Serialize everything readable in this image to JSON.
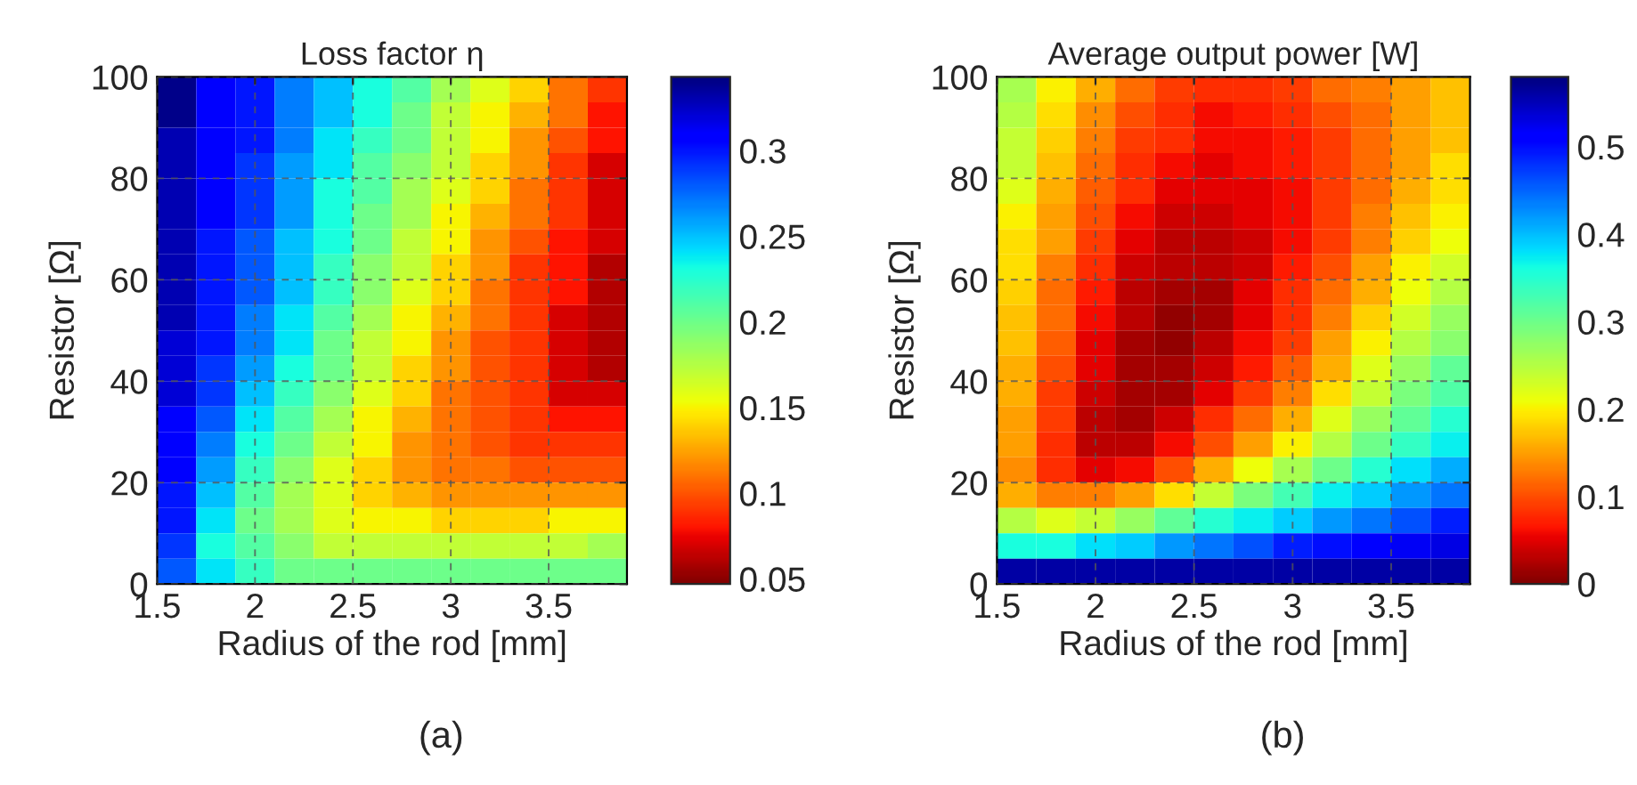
{
  "chart_data": [
    {
      "type": "heatmap",
      "title": "Loss factor η",
      "xlabel": "Radius of the rod [mm]",
      "ylabel": "Resistor [Ω]",
      "annotations": [
        "(a)"
      ],
      "x": [
        1.6,
        1.8,
        2.0,
        2.2,
        2.4,
        2.6,
        2.8,
        3.0,
        3.2,
        3.4,
        3.6,
        3.8
      ],
      "y": [
        97.5,
        92.5,
        87.5,
        82.5,
        77.5,
        72.5,
        67.5,
        62.5,
        57.5,
        52.5,
        47.5,
        42.5,
        37.5,
        32.5,
        27.5,
        22.5,
        17.5,
        12.5,
        7.5,
        2.5
      ],
      "xlim": [
        1.5,
        3.9
      ],
      "xticks": [
        1.5,
        2,
        2.5,
        3,
        3.5
      ],
      "ylim": [
        0,
        100
      ],
      "yticks": [
        0,
        20,
        40,
        60,
        80,
        100
      ],
      "grid": true,
      "clim": [
        0.047,
        0.343
      ],
      "cticks": [
        0.05,
        0.1,
        0.15,
        0.2,
        0.25,
        0.3
      ],
      "cells": [
        [
          0.34,
          0.31,
          0.3,
          0.27,
          0.25,
          0.23,
          0.21,
          0.18,
          0.16,
          0.14,
          0.11,
          0.09
        ],
        [
          0.34,
          0.31,
          0.3,
          0.27,
          0.25,
          0.23,
          0.2,
          0.17,
          0.15,
          0.13,
          0.11,
          0.08
        ],
        [
          0.33,
          0.31,
          0.3,
          0.27,
          0.24,
          0.22,
          0.2,
          0.17,
          0.15,
          0.12,
          0.1,
          0.08
        ],
        [
          0.33,
          0.31,
          0.29,
          0.26,
          0.24,
          0.21,
          0.19,
          0.17,
          0.14,
          0.12,
          0.09,
          0.07
        ],
        [
          0.33,
          0.31,
          0.29,
          0.26,
          0.23,
          0.21,
          0.18,
          0.16,
          0.14,
          0.11,
          0.09,
          0.07
        ],
        [
          0.33,
          0.31,
          0.29,
          0.26,
          0.23,
          0.2,
          0.18,
          0.15,
          0.13,
          0.11,
          0.09,
          0.07
        ],
        [
          0.33,
          0.3,
          0.28,
          0.25,
          0.23,
          0.2,
          0.17,
          0.15,
          0.12,
          0.1,
          0.08,
          0.07
        ],
        [
          0.33,
          0.3,
          0.28,
          0.25,
          0.22,
          0.19,
          0.17,
          0.14,
          0.12,
          0.09,
          0.08,
          0.06
        ],
        [
          0.33,
          0.3,
          0.28,
          0.25,
          0.22,
          0.19,
          0.16,
          0.14,
          0.11,
          0.09,
          0.08,
          0.06
        ],
        [
          0.33,
          0.3,
          0.27,
          0.24,
          0.21,
          0.18,
          0.15,
          0.13,
          0.11,
          0.09,
          0.07,
          0.06
        ],
        [
          0.32,
          0.3,
          0.27,
          0.24,
          0.2,
          0.17,
          0.15,
          0.12,
          0.1,
          0.09,
          0.07,
          0.06
        ],
        [
          0.32,
          0.29,
          0.26,
          0.23,
          0.2,
          0.17,
          0.14,
          0.12,
          0.1,
          0.09,
          0.07,
          0.06
        ],
        [
          0.32,
          0.29,
          0.25,
          0.22,
          0.19,
          0.16,
          0.14,
          0.11,
          0.1,
          0.09,
          0.07,
          0.07
        ],
        [
          0.31,
          0.28,
          0.24,
          0.21,
          0.18,
          0.15,
          0.13,
          0.11,
          0.1,
          0.09,
          0.08,
          0.08
        ],
        [
          0.31,
          0.27,
          0.23,
          0.2,
          0.17,
          0.15,
          0.12,
          0.11,
          0.1,
          0.09,
          0.09,
          0.09
        ],
        [
          0.31,
          0.26,
          0.22,
          0.19,
          0.16,
          0.14,
          0.12,
          0.11,
          0.11,
          0.1,
          0.1,
          0.1
        ],
        [
          0.3,
          0.25,
          0.21,
          0.18,
          0.16,
          0.14,
          0.13,
          0.12,
          0.12,
          0.12,
          0.12,
          0.12
        ],
        [
          0.3,
          0.24,
          0.2,
          0.18,
          0.16,
          0.15,
          0.15,
          0.14,
          0.14,
          0.14,
          0.15,
          0.15
        ],
        [
          0.29,
          0.23,
          0.21,
          0.19,
          0.17,
          0.17,
          0.17,
          0.17,
          0.17,
          0.17,
          0.17,
          0.18
        ],
        [
          0.28,
          0.24,
          0.22,
          0.2,
          0.2,
          0.2,
          0.2,
          0.2,
          0.2,
          0.2,
          0.2,
          0.2
        ]
      ]
    },
    {
      "type": "heatmap",
      "title": "Average output power [W]",
      "xlabel": "Radius of the rod [mm]",
      "ylabel": "Resistor [Ω]",
      "annotations": [
        "(b)"
      ],
      "x": [
        1.6,
        1.8,
        2.0,
        2.2,
        2.4,
        2.6,
        2.8,
        3.0,
        3.2,
        3.4,
        3.6,
        3.8
      ],
      "y": [
        97.5,
        92.5,
        87.5,
        82.5,
        77.5,
        72.5,
        67.5,
        62.5,
        57.5,
        52.5,
        47.5,
        42.5,
        37.5,
        32.5,
        27.5,
        22.5,
        17.5,
        12.5,
        7.5,
        2.5
      ],
      "xlim": [
        1.5,
        3.9
      ],
      "xticks": [
        1.5,
        2,
        2.5,
        3,
        3.5
      ],
      "ylim": [
        0,
        100
      ],
      "yticks": [
        0,
        20,
        40,
        60,
        80,
        100
      ],
      "grid": true,
      "clim": [
        0,
        0.58
      ],
      "cticks": [
        0,
        0.1,
        0.2,
        0.3,
        0.4,
        0.5
      ],
      "cells": [
        [
          0.26,
          0.2,
          0.16,
          0.12,
          0.09,
          0.08,
          0.08,
          0.09,
          0.12,
          0.13,
          0.15,
          0.17
        ],
        [
          0.25,
          0.19,
          0.14,
          0.1,
          0.08,
          0.06,
          0.07,
          0.08,
          0.1,
          0.12,
          0.15,
          0.17
        ],
        [
          0.24,
          0.18,
          0.13,
          0.09,
          0.08,
          0.06,
          0.06,
          0.07,
          0.09,
          0.12,
          0.15,
          0.17
        ],
        [
          0.24,
          0.17,
          0.12,
          0.08,
          0.06,
          0.05,
          0.06,
          0.07,
          0.09,
          0.12,
          0.15,
          0.19
        ],
        [
          0.22,
          0.16,
          0.11,
          0.08,
          0.05,
          0.05,
          0.05,
          0.06,
          0.09,
          0.12,
          0.16,
          0.19
        ],
        [
          0.2,
          0.15,
          0.1,
          0.06,
          0.04,
          0.04,
          0.05,
          0.06,
          0.09,
          0.13,
          0.17,
          0.2
        ],
        [
          0.19,
          0.15,
          0.09,
          0.05,
          0.03,
          0.03,
          0.04,
          0.06,
          0.09,
          0.13,
          0.18,
          0.21
        ],
        [
          0.19,
          0.13,
          0.08,
          0.04,
          0.03,
          0.03,
          0.04,
          0.07,
          0.1,
          0.15,
          0.2,
          0.23
        ],
        [
          0.18,
          0.12,
          0.07,
          0.03,
          0.02,
          0.02,
          0.05,
          0.08,
          0.12,
          0.16,
          0.21,
          0.25
        ],
        [
          0.17,
          0.12,
          0.06,
          0.03,
          0.01,
          0.02,
          0.05,
          0.08,
          0.13,
          0.18,
          0.23,
          0.27
        ],
        [
          0.17,
          0.11,
          0.05,
          0.02,
          0.01,
          0.03,
          0.06,
          0.09,
          0.15,
          0.2,
          0.25,
          0.28
        ],
        [
          0.16,
          0.1,
          0.05,
          0.02,
          0.02,
          0.04,
          0.07,
          0.11,
          0.16,
          0.22,
          0.27,
          0.31
        ],
        [
          0.16,
          0.09,
          0.04,
          0.02,
          0.02,
          0.05,
          0.09,
          0.13,
          0.19,
          0.24,
          0.29,
          0.32
        ],
        [
          0.15,
          0.09,
          0.03,
          0.02,
          0.04,
          0.08,
          0.12,
          0.16,
          0.22,
          0.27,
          0.31,
          0.35
        ],
        [
          0.15,
          0.08,
          0.03,
          0.03,
          0.06,
          0.1,
          0.15,
          0.2,
          0.25,
          0.3,
          0.34,
          0.37
        ],
        [
          0.14,
          0.08,
          0.05,
          0.06,
          0.1,
          0.16,
          0.21,
          0.26,
          0.3,
          0.35,
          0.38,
          0.41
        ],
        [
          0.16,
          0.13,
          0.13,
          0.15,
          0.19,
          0.24,
          0.29,
          0.33,
          0.37,
          0.39,
          0.42,
          0.44
        ],
        [
          0.25,
          0.22,
          0.24,
          0.27,
          0.31,
          0.35,
          0.37,
          0.39,
          0.42,
          0.44,
          0.46,
          0.49
        ],
        [
          0.36,
          0.36,
          0.38,
          0.39,
          0.42,
          0.44,
          0.46,
          0.49,
          0.5,
          0.51,
          0.52,
          0.53
        ],
        [
          0.56,
          0.56,
          0.56,
          0.56,
          0.56,
          0.56,
          0.56,
          0.56,
          0.56,
          0.56,
          0.56,
          0.56
        ]
      ]
    }
  ]
}
